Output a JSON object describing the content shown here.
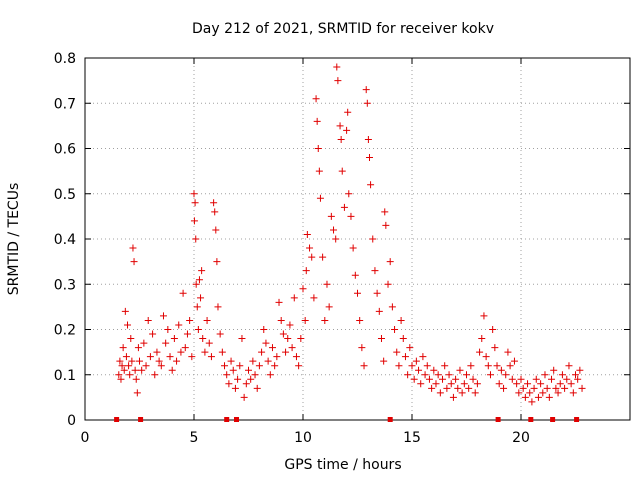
{
  "chart_data": {
    "type": "scatter",
    "title": "Day 212 of 2021, SRMTID for receiver kokv",
    "xlabel": "GPS time / hours",
    "ylabel": "SRMTID / TECUs",
    "xlim": [
      0,
      25
    ],
    "ylim": [
      0,
      0.8
    ],
    "xticks": [
      0,
      5,
      10,
      15,
      20
    ],
    "yticks": [
      0,
      0.1,
      0.2,
      0.3,
      0.4,
      0.5,
      0.6,
      0.7,
      0.8
    ],
    "grid": true,
    "legend": "none",
    "color": "#e00000",
    "marker": "+",
    "series": [
      {
        "name": "SRMTID",
        "points": [
          [
            1.55,
            0.1
          ],
          [
            1.6,
            0.13
          ],
          [
            1.65,
            0.09
          ],
          [
            1.7,
            0.12
          ],
          [
            1.75,
            0.16
          ],
          [
            1.8,
            0.11
          ],
          [
            1.85,
            0.24
          ],
          [
            1.9,
            0.14
          ],
          [
            1.95,
            0.21
          ],
          [
            2.0,
            0.12
          ],
          [
            2.05,
            0.1
          ],
          [
            2.1,
            0.18
          ],
          [
            2.15,
            0.13
          ],
          [
            2.2,
            0.38
          ],
          [
            2.25,
            0.35
          ],
          [
            2.3,
            0.11
          ],
          [
            2.35,
            0.09
          ],
          [
            2.4,
            0.06
          ],
          [
            2.45,
            0.16
          ],
          [
            2.5,
            0.13
          ],
          [
            2.6,
            0.11
          ],
          [
            2.7,
            0.17
          ],
          [
            2.8,
            0.12
          ],
          [
            2.9,
            0.22
          ],
          [
            3.0,
            0.14
          ],
          [
            3.1,
            0.19
          ],
          [
            3.2,
            0.1
          ],
          [
            3.3,
            0.15
          ],
          [
            3.4,
            0.13
          ],
          [
            3.5,
            0.12
          ],
          [
            3.6,
            0.23
          ],
          [
            3.7,
            0.17
          ],
          [
            3.8,
            0.2
          ],
          [
            3.9,
            0.14
          ],
          [
            4.0,
            0.11
          ],
          [
            4.1,
            0.18
          ],
          [
            4.2,
            0.13
          ],
          [
            4.3,
            0.21
          ],
          [
            4.4,
            0.15
          ],
          [
            4.5,
            0.28
          ],
          [
            4.6,
            0.16
          ],
          [
            4.7,
            0.19
          ],
          [
            4.8,
            0.22
          ],
          [
            4.9,
            0.14
          ],
          [
            5.0,
            0.5
          ],
          [
            5.02,
            0.44
          ],
          [
            5.05,
            0.48
          ],
          [
            5.08,
            0.4
          ],
          [
            5.1,
            0.3
          ],
          [
            5.15,
            0.25
          ],
          [
            5.2,
            0.2
          ],
          [
            5.25,
            0.31
          ],
          [
            5.3,
            0.27
          ],
          [
            5.35,
            0.33
          ],
          [
            5.4,
            0.18
          ],
          [
            5.5,
            0.15
          ],
          [
            5.6,
            0.22
          ],
          [
            5.7,
            0.17
          ],
          [
            5.8,
            0.14
          ],
          [
            5.9,
            0.48
          ],
          [
            5.95,
            0.46
          ],
          [
            6.0,
            0.42
          ],
          [
            6.05,
            0.35
          ],
          [
            6.1,
            0.25
          ],
          [
            6.2,
            0.19
          ],
          [
            6.3,
            0.15
          ],
          [
            6.4,
            0.12
          ],
          [
            6.5,
            0.1
          ],
          [
            6.6,
            0.08
          ],
          [
            6.7,
            0.13
          ],
          [
            6.8,
            0.11
          ],
          [
            6.9,
            0.07
          ],
          [
            7.0,
            0.09
          ],
          [
            7.1,
            0.12
          ],
          [
            7.2,
            0.18
          ],
          [
            7.3,
            0.05
          ],
          [
            7.4,
            0.08
          ],
          [
            7.5,
            0.11
          ],
          [
            7.6,
            0.09
          ],
          [
            7.7,
            0.13
          ],
          [
            7.8,
            0.1
          ],
          [
            7.9,
            0.07
          ],
          [
            8.0,
            0.12
          ],
          [
            8.1,
            0.15
          ],
          [
            8.2,
            0.2
          ],
          [
            8.3,
            0.17
          ],
          [
            8.4,
            0.13
          ],
          [
            8.5,
            0.1
          ],
          [
            8.6,
            0.16
          ],
          [
            8.7,
            0.12
          ],
          [
            8.8,
            0.14
          ],
          [
            8.9,
            0.26
          ],
          [
            9.0,
            0.22
          ],
          [
            9.1,
            0.19
          ],
          [
            9.2,
            0.15
          ],
          [
            9.3,
            0.18
          ],
          [
            9.4,
            0.21
          ],
          [
            9.5,
            0.16
          ],
          [
            9.6,
            0.27
          ],
          [
            9.7,
            0.14
          ],
          [
            9.8,
            0.12
          ],
          [
            9.9,
            0.18
          ],
          [
            10.0,
            0.29
          ],
          [
            10.1,
            0.22
          ],
          [
            10.15,
            0.33
          ],
          [
            10.2,
            0.41
          ],
          [
            10.3,
            0.38
          ],
          [
            10.4,
            0.36
          ],
          [
            10.5,
            0.27
          ],
          [
            10.6,
            0.71
          ],
          [
            10.65,
            0.66
          ],
          [
            10.7,
            0.6
          ],
          [
            10.75,
            0.55
          ],
          [
            10.8,
            0.49
          ],
          [
            10.9,
            0.36
          ],
          [
            11.0,
            0.22
          ],
          [
            11.1,
            0.3
          ],
          [
            11.2,
            0.25
          ],
          [
            11.3,
            0.45
          ],
          [
            11.4,
            0.42
          ],
          [
            11.5,
            0.4
          ],
          [
            11.55,
            0.78
          ],
          [
            11.6,
            0.75
          ],
          [
            11.7,
            0.65
          ],
          [
            11.75,
            0.62
          ],
          [
            11.8,
            0.55
          ],
          [
            11.9,
            0.47
          ],
          [
            12.0,
            0.64
          ],
          [
            12.05,
            0.68
          ],
          [
            12.1,
            0.5
          ],
          [
            12.2,
            0.45
          ],
          [
            12.3,
            0.38
          ],
          [
            12.4,
            0.32
          ],
          [
            12.5,
            0.28
          ],
          [
            12.6,
            0.22
          ],
          [
            12.7,
            0.16
          ],
          [
            12.8,
            0.12
          ],
          [
            12.9,
            0.73
          ],
          [
            12.95,
            0.7
          ],
          [
            13.0,
            0.62
          ],
          [
            13.05,
            0.58
          ],
          [
            13.1,
            0.52
          ],
          [
            13.2,
            0.4
          ],
          [
            13.3,
            0.33
          ],
          [
            13.4,
            0.28
          ],
          [
            13.5,
            0.24
          ],
          [
            13.6,
            0.18
          ],
          [
            13.7,
            0.13
          ],
          [
            13.75,
            0.46
          ],
          [
            13.8,
            0.43
          ],
          [
            13.9,
            0.3
          ],
          [
            14.0,
            0.35
          ],
          [
            14.1,
            0.25
          ],
          [
            14.2,
            0.2
          ],
          [
            14.3,
            0.15
          ],
          [
            14.4,
            0.12
          ],
          [
            14.5,
            0.22
          ],
          [
            14.6,
            0.18
          ],
          [
            14.7,
            0.14
          ],
          [
            14.8,
            0.1
          ],
          [
            14.9,
            0.16
          ],
          [
            15.0,
            0.12
          ],
          [
            15.1,
            0.09
          ],
          [
            15.2,
            0.13
          ],
          [
            15.3,
            0.11
          ],
          [
            15.4,
            0.08
          ],
          [
            15.5,
            0.14
          ],
          [
            15.6,
            0.1
          ],
          [
            15.7,
            0.12
          ],
          [
            15.8,
            0.09
          ],
          [
            15.9,
            0.07
          ],
          [
            16.0,
            0.11
          ],
          [
            16.1,
            0.08
          ],
          [
            16.2,
            0.1
          ],
          [
            16.3,
            0.06
          ],
          [
            16.4,
            0.09
          ],
          [
            16.5,
            0.12
          ],
          [
            16.6,
            0.07
          ],
          [
            16.7,
            0.1
          ],
          [
            16.8,
            0.08
          ],
          [
            16.9,
            0.05
          ],
          [
            17.0,
            0.09
          ],
          [
            17.1,
            0.07
          ],
          [
            17.2,
            0.11
          ],
          [
            17.3,
            0.06
          ],
          [
            17.4,
            0.08
          ],
          [
            17.5,
            0.1
          ],
          [
            17.6,
            0.07
          ],
          [
            17.7,
            0.12
          ],
          [
            17.8,
            0.09
          ],
          [
            17.9,
            0.06
          ],
          [
            18.0,
            0.08
          ],
          [
            18.1,
            0.15
          ],
          [
            18.2,
            0.18
          ],
          [
            18.3,
            0.23
          ],
          [
            18.4,
            0.14
          ],
          [
            18.5,
            0.12
          ],
          [
            18.6,
            0.1
          ],
          [
            18.7,
            0.2
          ],
          [
            18.8,
            0.16
          ],
          [
            18.9,
            0.12
          ],
          [
            19.0,
            0.08
          ],
          [
            19.1,
            0.11
          ],
          [
            19.2,
            0.07
          ],
          [
            19.3,
            0.1
          ],
          [
            19.4,
            0.15
          ],
          [
            19.5,
            0.12
          ],
          [
            19.6,
            0.09
          ],
          [
            19.7,
            0.13
          ],
          [
            19.8,
            0.08
          ],
          [
            19.9,
            0.06
          ],
          [
            20.0,
            0.09
          ],
          [
            20.1,
            0.07
          ],
          [
            20.2,
            0.05
          ],
          [
            20.3,
            0.08
          ],
          [
            20.4,
            0.06
          ],
          [
            20.5,
            0.04
          ],
          [
            20.6,
            0.07
          ],
          [
            20.7,
            0.09
          ],
          [
            20.8,
            0.05
          ],
          [
            20.9,
            0.08
          ],
          [
            21.0,
            0.06
          ],
          [
            21.1,
            0.1
          ],
          [
            21.2,
            0.07
          ],
          [
            21.3,
            0.05
          ],
          [
            21.4,
            0.09
          ],
          [
            21.5,
            0.11
          ],
          [
            21.6,
            0.07
          ],
          [
            21.7,
            0.06
          ],
          [
            21.8,
            0.08
          ],
          [
            21.9,
            0.1
          ],
          [
            22.0,
            0.07
          ],
          [
            22.1,
            0.09
          ],
          [
            22.2,
            0.12
          ],
          [
            22.3,
            0.08
          ],
          [
            22.4,
            0.06
          ],
          [
            22.5,
            0.1
          ],
          [
            22.6,
            0.09
          ],
          [
            22.7,
            0.11
          ],
          [
            22.8,
            0.07
          ]
        ]
      }
    ],
    "baseline_markers_x": [
      1.45,
      2.55,
      6.5,
      6.95,
      14.0,
      18.95,
      20.45,
      21.45,
      22.55
    ]
  }
}
